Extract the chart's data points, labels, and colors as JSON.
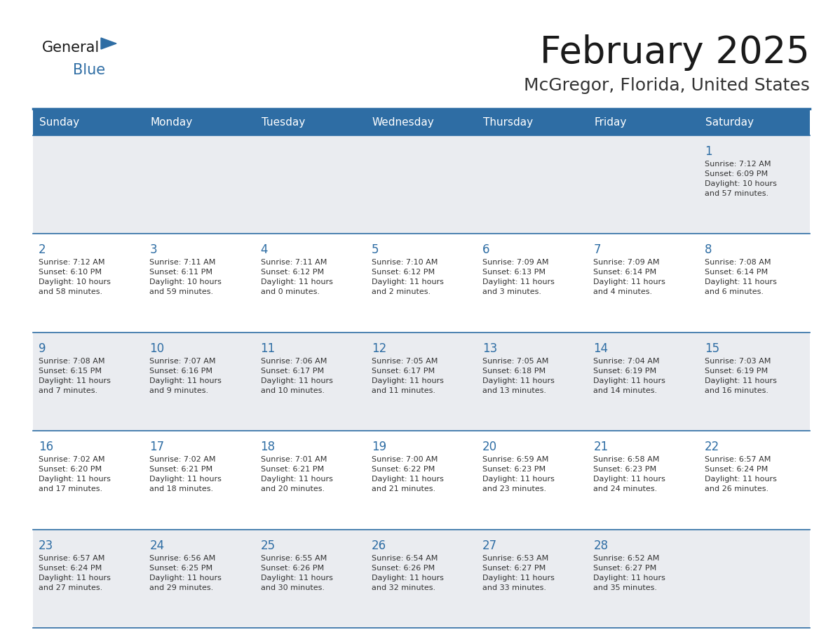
{
  "title": "February 2025",
  "subtitle": "McGregor, Florida, United States",
  "header_bg": "#2E6DA4",
  "header_text_color": "#FFFFFF",
  "cell_bg_odd": "#EAECF0",
  "cell_bg_even": "#FFFFFF",
  "title_color": "#1a1a1a",
  "subtitle_color": "#333333",
  "day_number_color": "#2E6DA4",
  "cell_text_color": "#333333",
  "border_color": "#2E6DA4",
  "line_color": "#2E6DA4",
  "days_of_week": [
    "Sunday",
    "Monday",
    "Tuesday",
    "Wednesday",
    "Thursday",
    "Friday",
    "Saturday"
  ],
  "weeks": [
    [
      {
        "day": "",
        "text": ""
      },
      {
        "day": "",
        "text": ""
      },
      {
        "day": "",
        "text": ""
      },
      {
        "day": "",
        "text": ""
      },
      {
        "day": "",
        "text": ""
      },
      {
        "day": "",
        "text": ""
      },
      {
        "day": "1",
        "text": "Sunrise: 7:12 AM\nSunset: 6:09 PM\nDaylight: 10 hours\nand 57 minutes."
      }
    ],
    [
      {
        "day": "2",
        "text": "Sunrise: 7:12 AM\nSunset: 6:10 PM\nDaylight: 10 hours\nand 58 minutes."
      },
      {
        "day": "3",
        "text": "Sunrise: 7:11 AM\nSunset: 6:11 PM\nDaylight: 10 hours\nand 59 minutes."
      },
      {
        "day": "4",
        "text": "Sunrise: 7:11 AM\nSunset: 6:12 PM\nDaylight: 11 hours\nand 0 minutes."
      },
      {
        "day": "5",
        "text": "Sunrise: 7:10 AM\nSunset: 6:12 PM\nDaylight: 11 hours\nand 2 minutes."
      },
      {
        "day": "6",
        "text": "Sunrise: 7:09 AM\nSunset: 6:13 PM\nDaylight: 11 hours\nand 3 minutes."
      },
      {
        "day": "7",
        "text": "Sunrise: 7:09 AM\nSunset: 6:14 PM\nDaylight: 11 hours\nand 4 minutes."
      },
      {
        "day": "8",
        "text": "Sunrise: 7:08 AM\nSunset: 6:14 PM\nDaylight: 11 hours\nand 6 minutes."
      }
    ],
    [
      {
        "day": "9",
        "text": "Sunrise: 7:08 AM\nSunset: 6:15 PM\nDaylight: 11 hours\nand 7 minutes."
      },
      {
        "day": "10",
        "text": "Sunrise: 7:07 AM\nSunset: 6:16 PM\nDaylight: 11 hours\nand 9 minutes."
      },
      {
        "day": "11",
        "text": "Sunrise: 7:06 AM\nSunset: 6:17 PM\nDaylight: 11 hours\nand 10 minutes."
      },
      {
        "day": "12",
        "text": "Sunrise: 7:05 AM\nSunset: 6:17 PM\nDaylight: 11 hours\nand 11 minutes."
      },
      {
        "day": "13",
        "text": "Sunrise: 7:05 AM\nSunset: 6:18 PM\nDaylight: 11 hours\nand 13 minutes."
      },
      {
        "day": "14",
        "text": "Sunrise: 7:04 AM\nSunset: 6:19 PM\nDaylight: 11 hours\nand 14 minutes."
      },
      {
        "day": "15",
        "text": "Sunrise: 7:03 AM\nSunset: 6:19 PM\nDaylight: 11 hours\nand 16 minutes."
      }
    ],
    [
      {
        "day": "16",
        "text": "Sunrise: 7:02 AM\nSunset: 6:20 PM\nDaylight: 11 hours\nand 17 minutes."
      },
      {
        "day": "17",
        "text": "Sunrise: 7:02 AM\nSunset: 6:21 PM\nDaylight: 11 hours\nand 18 minutes."
      },
      {
        "day": "18",
        "text": "Sunrise: 7:01 AM\nSunset: 6:21 PM\nDaylight: 11 hours\nand 20 minutes."
      },
      {
        "day": "19",
        "text": "Sunrise: 7:00 AM\nSunset: 6:22 PM\nDaylight: 11 hours\nand 21 minutes."
      },
      {
        "day": "20",
        "text": "Sunrise: 6:59 AM\nSunset: 6:23 PM\nDaylight: 11 hours\nand 23 minutes."
      },
      {
        "day": "21",
        "text": "Sunrise: 6:58 AM\nSunset: 6:23 PM\nDaylight: 11 hours\nand 24 minutes."
      },
      {
        "day": "22",
        "text": "Sunrise: 6:57 AM\nSunset: 6:24 PM\nDaylight: 11 hours\nand 26 minutes."
      }
    ],
    [
      {
        "day": "23",
        "text": "Sunrise: 6:57 AM\nSunset: 6:24 PM\nDaylight: 11 hours\nand 27 minutes."
      },
      {
        "day": "24",
        "text": "Sunrise: 6:56 AM\nSunset: 6:25 PM\nDaylight: 11 hours\nand 29 minutes."
      },
      {
        "day": "25",
        "text": "Sunrise: 6:55 AM\nSunset: 6:26 PM\nDaylight: 11 hours\nand 30 minutes."
      },
      {
        "day": "26",
        "text": "Sunrise: 6:54 AM\nSunset: 6:26 PM\nDaylight: 11 hours\nand 32 minutes."
      },
      {
        "day": "27",
        "text": "Sunrise: 6:53 AM\nSunset: 6:27 PM\nDaylight: 11 hours\nand 33 minutes."
      },
      {
        "day": "28",
        "text": "Sunrise: 6:52 AM\nSunset: 6:27 PM\nDaylight: 11 hours\nand 35 minutes."
      },
      {
        "day": "",
        "text": ""
      }
    ]
  ],
  "logo_general_color": "#1a1a1a",
  "logo_blue_color": "#2E6DA4",
  "logo_triangle_color": "#2E6DA4"
}
